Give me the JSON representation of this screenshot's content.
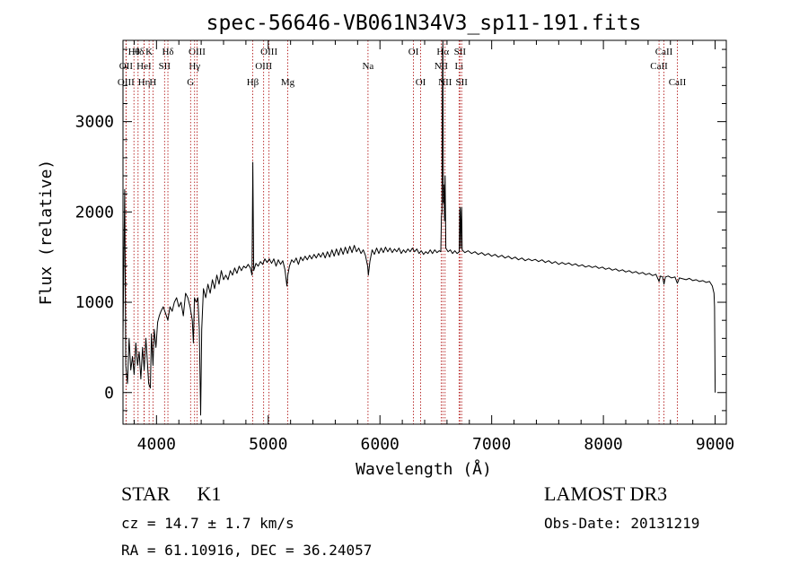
{
  "chart_data": {
    "type": "line",
    "title": "spec-56646-VB061N34V3_sp11-191.fits",
    "xlabel": "Wavelength (Å)",
    "ylabel": "Flux (relative)",
    "xlim": [
      3700,
      9100
    ],
    "ylim": [
      -350,
      3900
    ],
    "xticks": [
      4000,
      5000,
      6000,
      7000,
      8000,
      9000
    ],
    "yticks": [
      0,
      1000,
      2000,
      3000
    ],
    "line_color": "#000000",
    "marker_color": "#aa0000",
    "spectrum": [
      [
        3700,
        600
      ],
      [
        3715,
        2250
      ],
      [
        3725,
        300
      ],
      [
        3740,
        100
      ],
      [
        3755,
        600
      ],
      [
        3770,
        250
      ],
      [
        3785,
        400
      ],
      [
        3800,
        200
      ],
      [
        3815,
        550
      ],
      [
        3830,
        300
      ],
      [
        3845,
        450
      ],
      [
        3860,
        150
      ],
      [
        3875,
        500
      ],
      [
        3890,
        250
      ],
      [
        3905,
        600
      ],
      [
        3920,
        300
      ],
      [
        3930,
        100
      ],
      [
        3945,
        50
      ],
      [
        3955,
        650
      ],
      [
        3968,
        300
      ],
      [
        3980,
        700
      ],
      [
        3995,
        500
      ],
      [
        4010,
        780
      ],
      [
        4025,
        850
      ],
      [
        4040,
        900
      ],
      [
        4060,
        950
      ],
      [
        4080,
        880
      ],
      [
        4102,
        800
      ],
      [
        4120,
        950
      ],
      [
        4140,
        900
      ],
      [
        4160,
        1000
      ],
      [
        4180,
        1050
      ],
      [
        4200,
        950
      ],
      [
        4220,
        1000
      ],
      [
        4240,
        850
      ],
      [
        4260,
        1100
      ],
      [
        4280,
        1050
      ],
      [
        4300,
        950
      ],
      [
        4320,
        800
      ],
      [
        4330,
        550
      ],
      [
        4340,
        1050
      ],
      [
        4355,
        1000
      ],
      [
        4370,
        1050
      ],
      [
        4383,
        700
      ],
      [
        4395,
        -250
      ],
      [
        4405,
        700
      ],
      [
        4420,
        1150
      ],
      [
        4440,
        1050
      ],
      [
        4460,
        1200
      ],
      [
        4480,
        1100
      ],
      [
        4500,
        1250
      ],
      [
        4520,
        1150
      ],
      [
        4540,
        1300
      ],
      [
        4560,
        1200
      ],
      [
        4580,
        1350
      ],
      [
        4600,
        1250
      ],
      [
        4620,
        1300
      ],
      [
        4640,
        1250
      ],
      [
        4660,
        1350
      ],
      [
        4680,
        1300
      ],
      [
        4700,
        1380
      ],
      [
        4720,
        1320
      ],
      [
        4740,
        1400
      ],
      [
        4760,
        1350
      ],
      [
        4780,
        1400
      ],
      [
        4800,
        1380
      ],
      [
        4820,
        1420
      ],
      [
        4840,
        1380
      ],
      [
        4855,
        1300
      ],
      [
        4862,
        2550
      ],
      [
        4870,
        1350
      ],
      [
        4890,
        1430
      ],
      [
        4910,
        1400
      ],
      [
        4930,
        1450
      ],
      [
        4950,
        1420
      ],
      [
        4970,
        1480
      ],
      [
        4990,
        1440
      ],
      [
        5010,
        1480
      ],
      [
        5030,
        1430
      ],
      [
        5050,
        1480
      ],
      [
        5070,
        1400
      ],
      [
        5090,
        1470
      ],
      [
        5110,
        1420
      ],
      [
        5130,
        1460
      ],
      [
        5150,
        1360
      ],
      [
        5167,
        1180
      ],
      [
        5175,
        1300
      ],
      [
        5190,
        1400
      ],
      [
        5210,
        1470
      ],
      [
        5230,
        1440
      ],
      [
        5250,
        1490
      ],
      [
        5270,
        1420
      ],
      [
        5290,
        1500
      ],
      [
        5310,
        1460
      ],
      [
        5330,
        1510
      ],
      [
        5350,
        1470
      ],
      [
        5370,
        1520
      ],
      [
        5390,
        1480
      ],
      [
        5410,
        1530
      ],
      [
        5430,
        1490
      ],
      [
        5450,
        1540
      ],
      [
        5470,
        1500
      ],
      [
        5490,
        1550
      ],
      [
        5510,
        1490
      ],
      [
        5530,
        1560
      ],
      [
        5550,
        1500
      ],
      [
        5570,
        1580
      ],
      [
        5590,
        1510
      ],
      [
        5610,
        1590
      ],
      [
        5630,
        1520
      ],
      [
        5650,
        1600
      ],
      [
        5670,
        1530
      ],
      [
        5690,
        1610
      ],
      [
        5710,
        1540
      ],
      [
        5730,
        1620
      ],
      [
        5750,
        1550
      ],
      [
        5770,
        1630
      ],
      [
        5790,
        1560
      ],
      [
        5810,
        1600
      ],
      [
        5830,
        1540
      ],
      [
        5850,
        1580
      ],
      [
        5870,
        1520
      ],
      [
        5890,
        1400
      ],
      [
        5896,
        1300
      ],
      [
        5910,
        1450
      ],
      [
        5930,
        1580
      ],
      [
        5950,
        1530
      ],
      [
        5970,
        1600
      ],
      [
        5990,
        1540
      ],
      [
        6010,
        1600
      ],
      [
        6030,
        1550
      ],
      [
        6050,
        1610
      ],
      [
        6070,
        1560
      ],
      [
        6090,
        1600
      ],
      [
        6110,
        1550
      ],
      [
        6130,
        1590
      ],
      [
        6150,
        1560
      ],
      [
        6170,
        1600
      ],
      [
        6190,
        1540
      ],
      [
        6210,
        1580
      ],
      [
        6230,
        1550
      ],
      [
        6250,
        1590
      ],
      [
        6270,
        1560
      ],
      [
        6290,
        1600
      ],
      [
        6310,
        1560
      ],
      [
        6330,
        1590
      ],
      [
        6350,
        1540
      ],
      [
        6370,
        1570
      ],
      [
        6390,
        1530
      ],
      [
        6410,
        1560
      ],
      [
        6430,
        1540
      ],
      [
        6450,
        1580
      ],
      [
        6470,
        1540
      ],
      [
        6490,
        1580
      ],
      [
        6510,
        1550
      ],
      [
        6530,
        1570
      ],
      [
        6545,
        1560
      ],
      [
        6550,
        1950
      ],
      [
        6555,
        2000
      ],
      [
        6560,
        3700
      ],
      [
        6563,
        3900
      ],
      [
        6567,
        2100
      ],
      [
        6572,
        2300
      ],
      [
        6578,
        1900
      ],
      [
        6583,
        2400
      ],
      [
        6590,
        1600
      ],
      [
        6610,
        1560
      ],
      [
        6630,
        1580
      ],
      [
        6650,
        1540
      ],
      [
        6670,
        1570
      ],
      [
        6690,
        1540
      ],
      [
        6710,
        1560
      ],
      [
        6714,
        2000
      ],
      [
        6717,
        2050
      ],
      [
        6722,
        1600
      ],
      [
        6728,
        2000
      ],
      [
        6731,
        2050
      ],
      [
        6736,
        1580
      ],
      [
        6760,
        1550
      ],
      [
        6790,
        1570
      ],
      [
        6820,
        1540
      ],
      [
        6850,
        1560
      ],
      [
        6880,
        1530
      ],
      [
        6910,
        1550
      ],
      [
        6940,
        1520
      ],
      [
        6970,
        1540
      ],
      [
        7000,
        1510
      ],
      [
        7030,
        1530
      ],
      [
        7060,
        1500
      ],
      [
        7090,
        1520
      ],
      [
        7120,
        1490
      ],
      [
        7150,
        1510
      ],
      [
        7180,
        1480
      ],
      [
        7210,
        1500
      ],
      [
        7240,
        1470
      ],
      [
        7270,
        1490
      ],
      [
        7300,
        1460
      ],
      [
        7330,
        1480
      ],
      [
        7360,
        1460
      ],
      [
        7390,
        1475
      ],
      [
        7420,
        1450
      ],
      [
        7450,
        1470
      ],
      [
        7480,
        1440
      ],
      [
        7510,
        1460
      ],
      [
        7540,
        1430
      ],
      [
        7570,
        1450
      ],
      [
        7600,
        1420
      ],
      [
        7630,
        1440
      ],
      [
        7660,
        1420
      ],
      [
        7690,
        1435
      ],
      [
        7720,
        1410
      ],
      [
        7750,
        1425
      ],
      [
        7780,
        1400
      ],
      [
        7810,
        1415
      ],
      [
        7840,
        1390
      ],
      [
        7870,
        1405
      ],
      [
        7900,
        1385
      ],
      [
        7930,
        1400
      ],
      [
        7960,
        1375
      ],
      [
        7990,
        1390
      ],
      [
        8020,
        1365
      ],
      [
        8050,
        1380
      ],
      [
        8080,
        1355
      ],
      [
        8110,
        1370
      ],
      [
        8140,
        1345
      ],
      [
        8170,
        1360
      ],
      [
        8200,
        1335
      ],
      [
        8230,
        1350
      ],
      [
        8260,
        1325
      ],
      [
        8290,
        1340
      ],
      [
        8320,
        1315
      ],
      [
        8350,
        1330
      ],
      [
        8380,
        1305
      ],
      [
        8410,
        1320
      ],
      [
        8440,
        1295
      ],
      [
        8470,
        1310
      ],
      [
        8498,
        1230
      ],
      [
        8510,
        1290
      ],
      [
        8530,
        1280
      ],
      [
        8542,
        1200
      ],
      [
        8555,
        1280
      ],
      [
        8580,
        1290
      ],
      [
        8610,
        1270
      ],
      [
        8640,
        1280
      ],
      [
        8662,
        1210
      ],
      [
        8680,
        1270
      ],
      [
        8710,
        1260
      ],
      [
        8740,
        1250
      ],
      [
        8770,
        1265
      ],
      [
        8800,
        1240
      ],
      [
        8830,
        1250
      ],
      [
        8860,
        1230
      ],
      [
        8890,
        1240
      ],
      [
        8920,
        1220
      ],
      [
        8950,
        1230
      ],
      [
        8975,
        1180
      ],
      [
        8990,
        1100
      ],
      [
        8995,
        950
      ],
      [
        9000,
        0
      ]
    ],
    "lines": [
      {
        "label": "Hθ",
        "wave": 3798,
        "row": 1
      },
      {
        "label": "OII",
        "wave": 3727,
        "row": 2
      },
      {
        "label": "OIII",
        "wave": 3727,
        "row": 3
      },
      {
        "label": "Hδ",
        "wave": 3835,
        "row": 1
      },
      {
        "label": "HeI",
        "wave": 3888,
        "row": 2
      },
      {
        "label": "Hη",
        "wave": 3889,
        "row": 3
      },
      {
        "label": "K",
        "wave": 3934,
        "row": 1
      },
      {
        "label": "SII",
        "wave": 4072,
        "row": 2
      },
      {
        "label": "H",
        "wave": 3968,
        "row": 3
      },
      {
        "label": "Hδ",
        "wave": 4102,
        "row": 1
      },
      {
        "label": "OIII",
        "wave": 4363,
        "row": 1
      },
      {
        "label": "Hγ",
        "wave": 4341,
        "row": 2
      },
      {
        "label": "G",
        "wave": 4305,
        "row": 3
      },
      {
        "label": "OIII",
        "wave": 5007,
        "row": 1
      },
      {
        "label": "OIII",
        "wave": 4959,
        "row": 2
      },
      {
        "label": "Hβ",
        "wave": 4861,
        "row": 3
      },
      {
        "label": "Mg",
        "wave": 5175,
        "row": 3
      },
      {
        "label": "Na",
        "wave": 5893,
        "row": 2
      },
      {
        "label": "OI",
        "wave": 6300,
        "row": 1
      },
      {
        "label": "OI",
        "wave": 6364,
        "row": 3
      },
      {
        "label": "Hα",
        "wave": 6563,
        "row": 1
      },
      {
        "label": "SII",
        "wave": 6716,
        "row": 1
      },
      {
        "label": "NII",
        "wave": 6548,
        "row": 2
      },
      {
        "label": "Li",
        "wave": 6708,
        "row": 2
      },
      {
        "label": "NII",
        "wave": 6583,
        "row": 3
      },
      {
        "label": "SII",
        "wave": 6731,
        "row": 3
      },
      {
        "label": "CaII",
        "wave": 8542,
        "row": 1
      },
      {
        "label": "CaII",
        "wave": 8498,
        "row": 2
      },
      {
        "label": "CaII",
        "wave": 8662,
        "row": 3
      }
    ]
  },
  "info": {
    "class": "STAR",
    "subclass": "K1",
    "survey": "LAMOST DR3",
    "cz": "cz = 14.7 ± 1.7 km/s",
    "obs_date": "Obs-Date: 20131219",
    "radec": "RA =  61.10916, DEC =  36.24057"
  }
}
